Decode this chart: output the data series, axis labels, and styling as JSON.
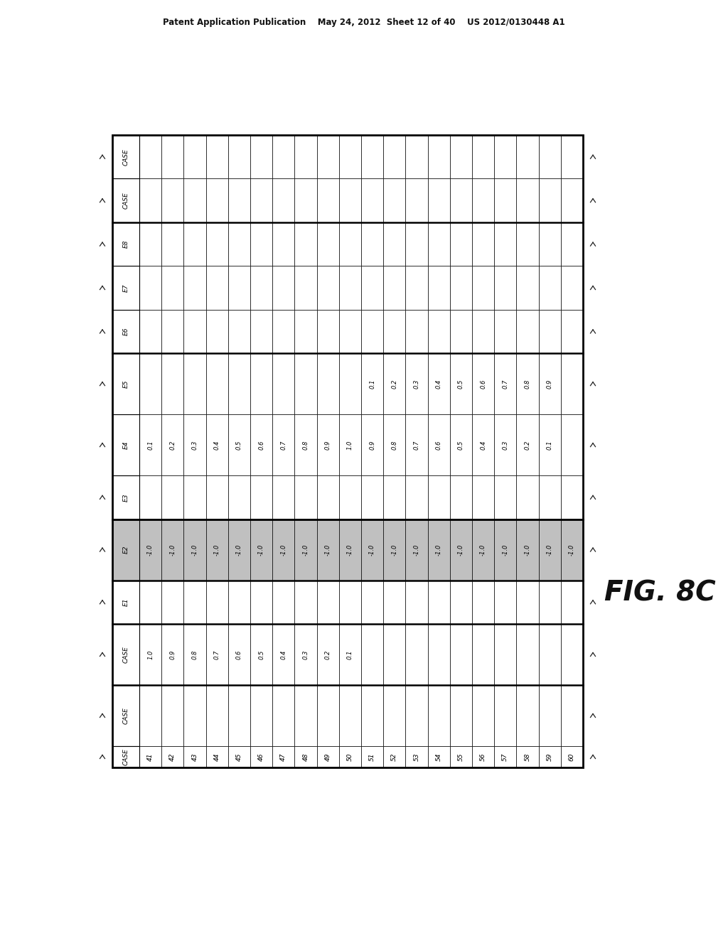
{
  "header": "Patent Application Publication    May 24, 2012  Sheet 12 of 40    US 2012/0130448 A1",
  "fig_label": "FIG. 8C",
  "row_headers": [
    "CASE",
    "CASE",
    "E1",
    "E2",
    "E3",
    "E4",
    "E5",
    "E6",
    "E7",
    "E8",
    "CASE",
    "CASE"
  ],
  "col_numbers": [
    41,
    42,
    43,
    44,
    45,
    46,
    47,
    48,
    49,
    50,
    51,
    52,
    53,
    54,
    55,
    56,
    57,
    58,
    59,
    60
  ],
  "row_data": {
    "CASE_val": [
      "1.0",
      "0.9",
      "0.8",
      "0.7",
      "0.6",
      "0.5",
      "0.4",
      "0.3",
      "0.2",
      "0.1",
      "",
      "",
      "",
      "",
      "",
      "",
      "",
      "",
      "",
      ""
    ],
    "E1": [
      "",
      "",
      "",
      "",
      "",
      "",
      "",
      "",
      "",
      "",
      "",
      "",
      "",
      "",
      "",
      "",
      "",
      "",
      "",
      ""
    ],
    "E2": [
      "-1.0",
      "-1.0",
      "-1.0",
      "-1.0",
      "-1.0",
      "-1.0",
      "-1.0",
      "-1.0",
      "-1.0",
      "-1.0",
      "-1.0",
      "-1.0",
      "-1.0",
      "-1.0",
      "-1.0",
      "-1.0",
      "-1.0",
      "-1.0",
      "-1.0",
      "-1.0"
    ],
    "E3": [
      "",
      "",
      "",
      "",
      "",
      "",
      "",
      "",
      "",
      "",
      "",
      "",
      "",
      "",
      "",
      "",
      "",
      "",
      "",
      ""
    ],
    "E4": [
      "0.1",
      "0.2",
      "0.3",
      "0.4",
      "0.5",
      "0.6",
      "0.7",
      "0.8",
      "0.9",
      "1.0",
      "0.9",
      "0.8",
      "0.7",
      "0.6",
      "0.5",
      "0.4",
      "0.3",
      "0.2",
      "0.1",
      ""
    ],
    "E5": [
      "",
      "",
      "",
      "",
      "",
      "",
      "",
      "",
      "",
      "",
      "0.1",
      "0.2",
      "0.3",
      "0.4",
      "0.5",
      "0.6",
      "0.7",
      "0.8",
      "0.9",
      ""
    ],
    "E6": [
      "",
      "",
      "",
      "",
      "",
      "",
      "",
      "",
      "",
      "",
      "",
      "",
      "",
      "",
      "",
      "",
      "",
      "",
      "",
      ""
    ],
    "E7": [
      "",
      "",
      "",
      "",
      "",
      "",
      "",
      "",
      "",
      "",
      "",
      "",
      "",
      "",
      "",
      "",
      "",
      "",
      "",
      ""
    ],
    "E8": [
      "",
      "",
      "",
      "",
      "",
      "",
      "",
      "",
      "",
      "",
      "",
      "",
      "",
      "",
      "",
      "",
      "",
      "",
      "",
      ""
    ],
    "CASE2": [
      "",
      "",
      "",
      "",
      "",
      "",
      "",
      "",
      "",
      "",
      "",
      "",
      "",
      "",
      "",
      "",
      "",
      "",
      "",
      ""
    ],
    "CASE3": [
      "",
      "",
      "",
      "",
      "",
      "",
      "",
      "",
      "",
      "",
      "",
      "",
      "",
      "",
      "",
      "",
      "",
      "",
      "",
      ""
    ]
  },
  "shaded_row_idx": 3,
  "shaded_color": "#c0c0c0",
  "bg_color": "#ffffff",
  "text_color": "#000000",
  "font_size": 6.0,
  "header_font_size": 8.5,
  "col_number_font_size": 6.5,
  "fig_label_font_size": 28
}
